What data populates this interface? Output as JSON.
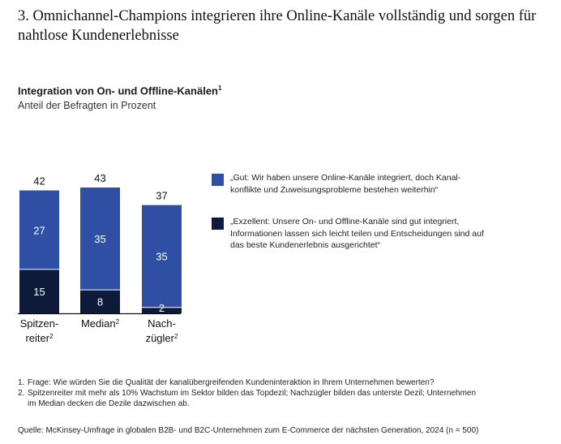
{
  "headline": "3. Omnichannel-Champions integrieren ihre Online-Kanäle vollständig und sorgen für nahtlose Kundenerlebnisse",
  "colors": {
    "gut": "#2e4fa3",
    "exzellent": "#0d1a3a",
    "axis": "#111111"
  },
  "chart_data": {
    "type": "bar",
    "stacked": true,
    "title": "Integration von On- und Offline-Kanälen",
    "title_footnote": "1",
    "subtitle": "Anteil der Befragten in Prozent",
    "categories": [
      {
        "lines": [
          "Spitzen-",
          "reiter"
        ],
        "footnote": "2"
      },
      {
        "lines": [
          "Median"
        ],
        "footnote": "2"
      },
      {
        "lines": [
          "Nach-",
          "zügler"
        ],
        "footnote": "2"
      }
    ],
    "series": [
      {
        "name": "Exzellent",
        "values": [
          15,
          8,
          2
        ]
      },
      {
        "name": "Gut",
        "values": [
          27,
          35,
          35
        ]
      }
    ],
    "totals": [
      42,
      43,
      37
    ],
    "ylim": [
      0,
      43
    ]
  },
  "legend": [
    {
      "key": "gut",
      "text": "„Gut: Wir haben unsere Online-Kanäle integriert, doch Kanal-konflikte und Zuweisungsprobleme bestehen weiterhin“"
    },
    {
      "key": "exzellent",
      "text": "„Exzellent: Unsere On- und Offline-Kanäle sind gut integriert, Informationen lassen sich leicht teilen und Entscheidungen sind auf das beste Kundenerlebnis ausgerichtet“"
    }
  ],
  "footnotes": [
    {
      "num": "1.",
      "text": "Frage: Wie würden Sie die Qualität der kanalübergreifenden Kundeninteraktion in Ihrem Unternehmen bewerten?"
    },
    {
      "num": "2.",
      "text": "Spitzenreiter mit mehr als 10% Wachstum im Sektor bilden das Topdezil; Nachzügler bilden das unterste Dezil; Unternehmen im Median decken die Dezile dazwischen ab."
    }
  ],
  "source": "Quelle: McKinsey-Umfrage in globalen B2B- und B2C-Unternehmen zum E-Commerce der nächsten Generation, 2024 (n = 500)"
}
